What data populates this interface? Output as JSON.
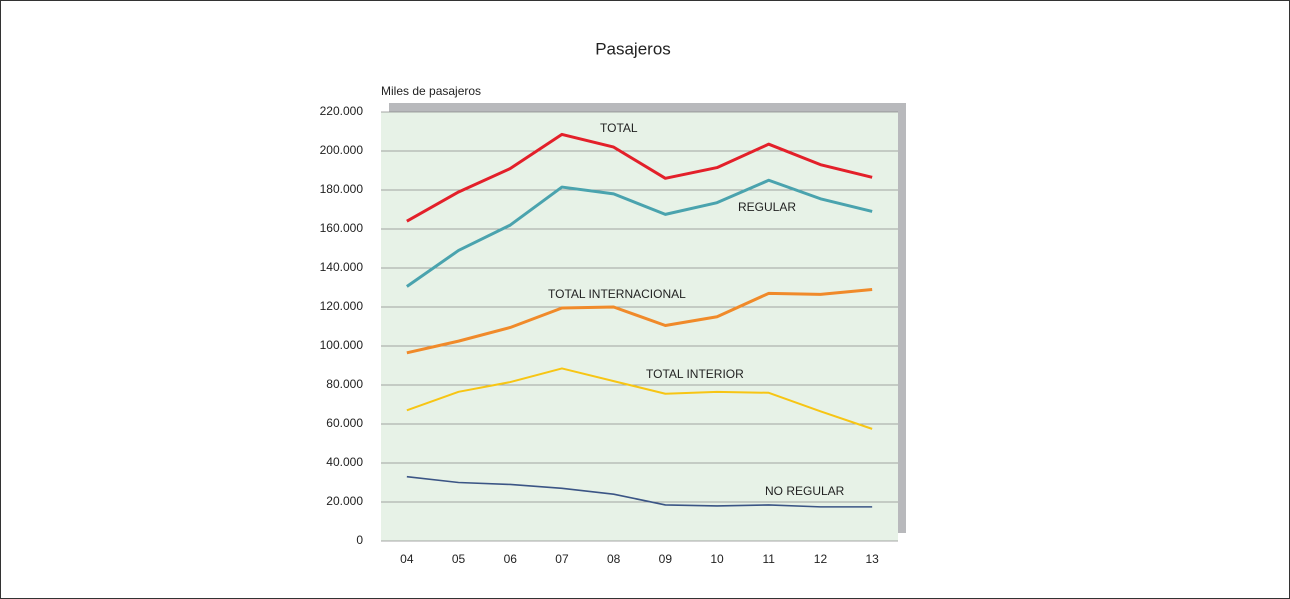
{
  "chart_data": {
    "type": "line",
    "title": "Pasajeros",
    "y_label": "Miles de pasajeros",
    "categories": [
      "04",
      "05",
      "06",
      "07",
      "08",
      "09",
      "10",
      "11",
      "12",
      "13"
    ],
    "series": [
      {
        "name": "TOTAL",
        "color": "#e3202a",
        "values": [
          164000,
          179000,
          191000,
          208500,
          202000,
          186000,
          191500,
          203500,
          193000,
          186500
        ]
      },
      {
        "name": "REGULAR",
        "color": "#4aa3ae",
        "values": [
          130500,
          149000,
          162000,
          181500,
          178000,
          167500,
          173500,
          185000,
          175500,
          169000
        ]
      },
      {
        "name": "TOTAL INTERNACIONAL",
        "color": "#f08a2a",
        "values": [
          96500,
          102500,
          109500,
          119500,
          120000,
          110500,
          115000,
          127000,
          126500,
          129000
        ]
      },
      {
        "name": "TOTAL INTERIOR",
        "color": "#f7c514",
        "values": [
          67000,
          76500,
          81500,
          88500,
          82000,
          75500,
          76500,
          76000,
          66500,
          57500
        ]
      },
      {
        "name": "NO REGULAR",
        "color": "#3b5585",
        "values": [
          33000,
          30000,
          29000,
          27000,
          24000,
          18500,
          18000,
          18500,
          17500,
          17500
        ]
      }
    ],
    "ylim": [
      0,
      220000
    ],
    "yticks": [
      0,
      {
        "value": 20000,
        "label": "20.000"
      },
      {
        "value": 40000,
        "label": "40.000"
      },
      {
        "value": 60000,
        "label": "60.000"
      },
      {
        "value": 80000,
        "label": "80.000"
      },
      {
        "value": 100000,
        "label": "100.000"
      },
      {
        "value": 120000,
        "label": "120.000"
      },
      {
        "value": 140000,
        "label": "140.000"
      },
      {
        "value": 160000,
        "label": "160.000"
      },
      {
        "value": 180000,
        "label": "180.000"
      },
      {
        "value": 200000,
        "label": "200.000"
      },
      {
        "value": 220000,
        "label": "220.000"
      }
    ],
    "grid": true
  }
}
